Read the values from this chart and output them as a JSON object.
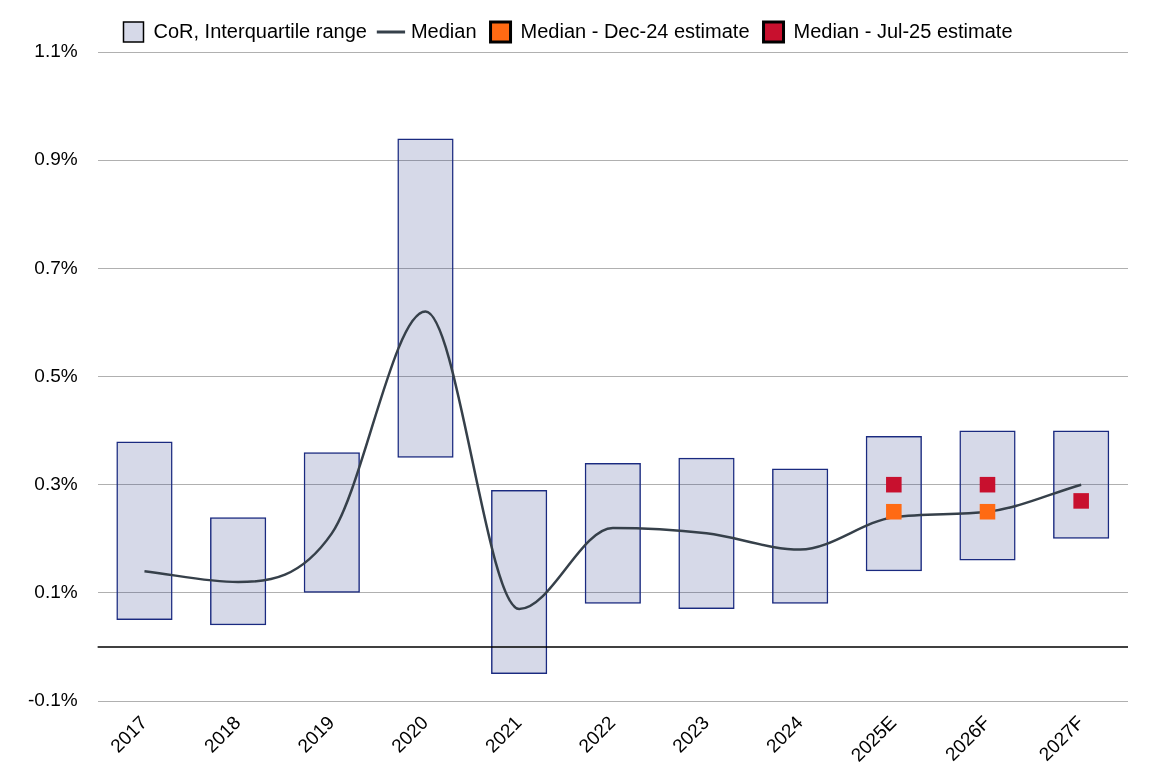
{
  "chart_data": {
    "type": "bar",
    "categories": [
      "2017",
      "2018",
      "2019",
      "2020",
      "2021",
      "2022",
      "2023",
      "2024",
      "2025E",
      "2026F",
      "2027F"
    ],
    "series": [
      {
        "name": "CoR, Interquartile range",
        "type": "bar",
        "color": "#1a2a80",
        "base": [
          0.05,
          0.04,
          0.1,
          0.35,
          -0.05,
          0.08,
          0.07,
          0.08,
          0.14,
          0.16,
          0.2
        ],
        "values": [
          0.33,
          0.2,
          0.26,
          0.59,
          0.34,
          0.26,
          0.28,
          0.25,
          0.25,
          0.24,
          0.2
        ]
      },
      {
        "name": "Median",
        "type": "line",
        "color": "#36404a",
        "marker": "none",
        "line_style": "solid",
        "values": [
          0.14,
          0.12,
          0.21,
          0.62,
          0.07,
          0.22,
          0.21,
          0.18,
          0.24,
          0.25,
          0.3
        ]
      },
      {
        "name": "Median - Dec-24 estimate",
        "type": "scatter",
        "color": "#ff6a13",
        "marker": "square",
        "x": [
          "2025E",
          "2026F"
        ],
        "values": [
          0.25,
          0.25
        ]
      },
      {
        "name": "Median - Jul-25 estimate",
        "type": "scatter",
        "color": "#c8102e",
        "marker": "square",
        "x": [
          "2025E",
          "2026F",
          "2027F"
        ],
        "values": [
          0.3,
          0.3,
          0.27
        ]
      }
    ],
    "ylim": [
      -0.1,
      1.1
    ],
    "yticks": [
      {
        "value": -0.1,
        "label": "-0.1%"
      },
      {
        "value": 0.1,
        "label": "0.1%"
      },
      {
        "value": 0.3,
        "label": "0.3%"
      },
      {
        "value": 0.5,
        "label": "0.5%"
      },
      {
        "value": 0.7,
        "label": "0.7%"
      },
      {
        "value": 0.9,
        "label": "0.9%"
      },
      {
        "value": 1.1,
        "label": "1.1%"
      }
    ],
    "ref_lines": [
      {
        "axis": "y",
        "value": 0,
        "label": null,
        "color": "#000000"
      }
    ],
    "grid": "y",
    "legend": "top"
  }
}
